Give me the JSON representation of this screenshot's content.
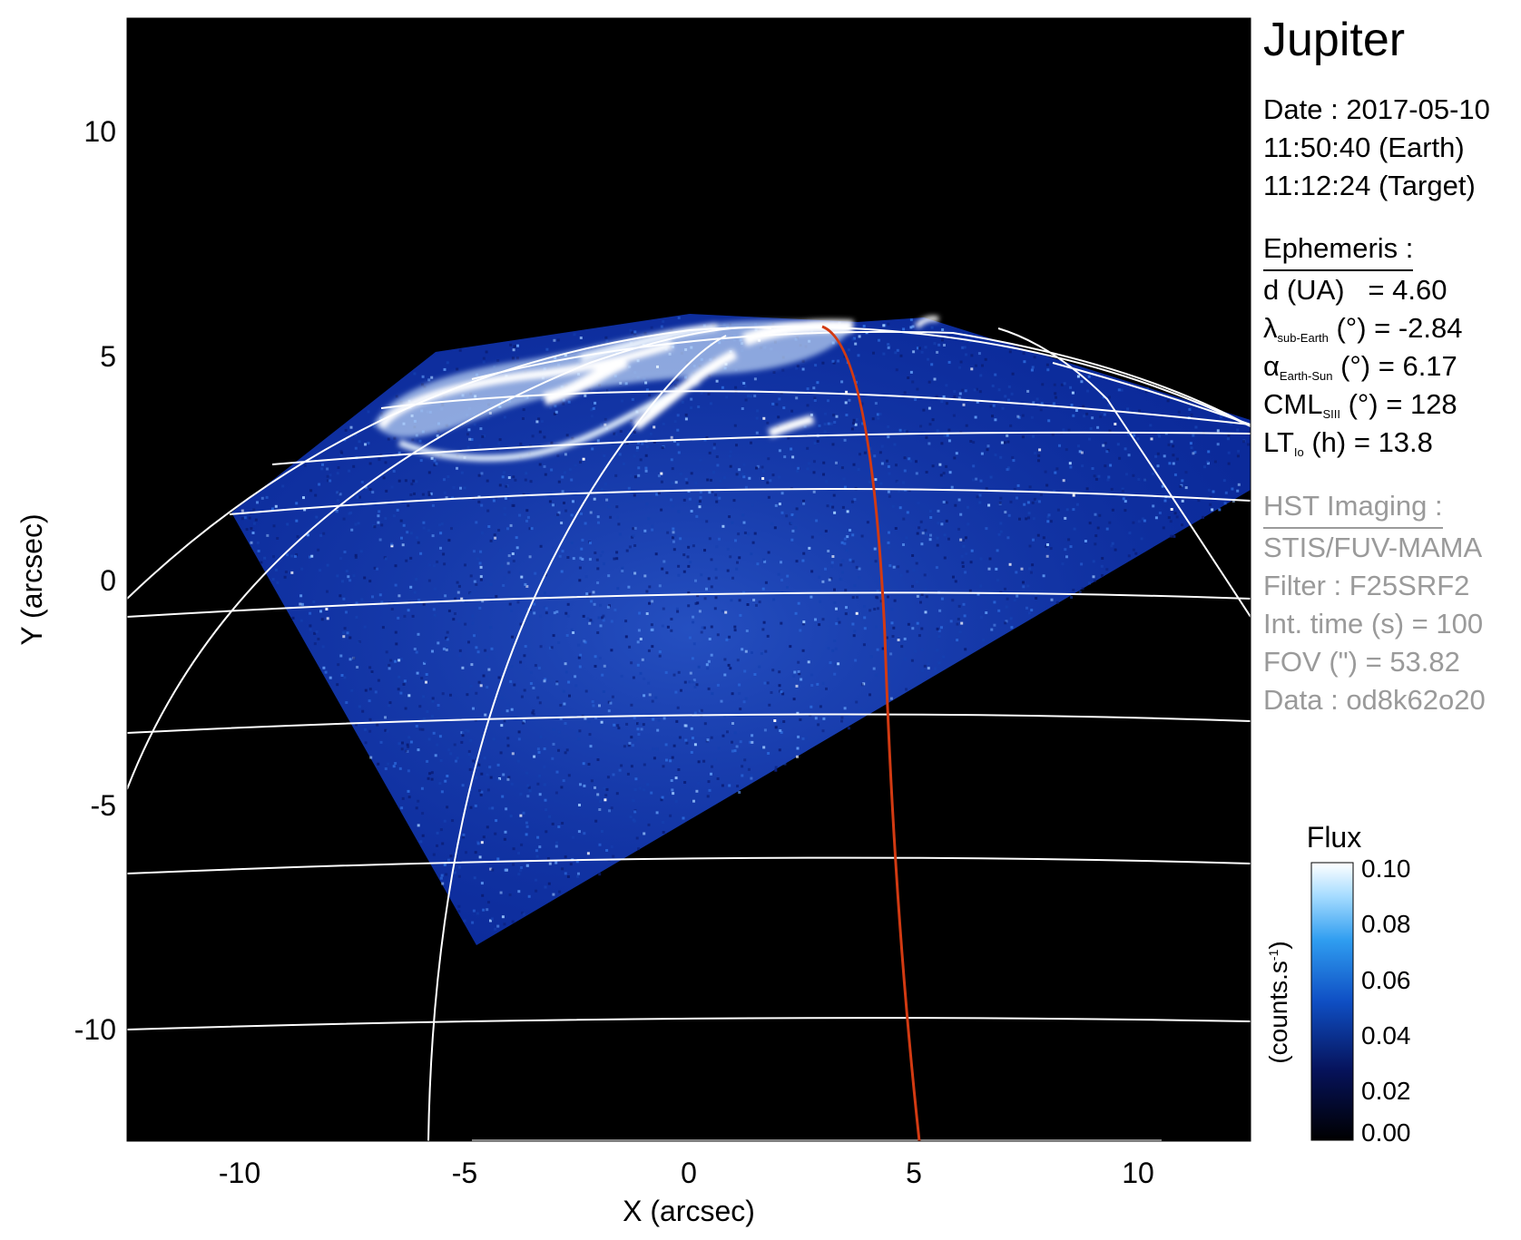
{
  "image": {
    "title": "Jupiter",
    "observation": {
      "date_line": "Date : 2017-05-10",
      "time_earth": "11:50:40 (Earth)",
      "time_target": "11:12:24 (Target)"
    },
    "ephemeris": {
      "heading": "Ephemeris :",
      "d_label": "d (UA)",
      "d_value": "= 4.60",
      "lat_symbol": "λ",
      "lat_sub": "sub-Earth",
      "lat_rest": " (°) = -2.84",
      "phase_symbol": "α",
      "phase_sub": "Earth-Sun",
      "phase_rest": " (°) = 6.17",
      "cml_symbol": "CML",
      "cml_sub": "SIII",
      "cml_rest": " (°) = 128",
      "lt_symbol": "LT",
      "lt_sub": "Io",
      "lt_rest": " (h) = 13.8"
    },
    "hst": {
      "heading": "HST Imaging :",
      "instrument": "STIS/FUV-MAMA",
      "filter": "Filter : F25SRF2",
      "int_time": "Int. time (s) = 100",
      "fov": "FOV (\") = 53.82",
      "data": "Data : od8k62o20"
    },
    "axes": {
      "x_label": "X (arcsec)",
      "y_label": "Y (arcsec)",
      "x_ticks": [
        "-10",
        "-5",
        "0",
        "5",
        "10"
      ],
      "y_ticks": [
        "10",
        "5",
        "0",
        "-5",
        "-10"
      ],
      "x_range": [
        -12.5,
        12.5
      ],
      "y_range": [
        -12.5,
        12.5
      ]
    },
    "colorbar": {
      "title": "Flux",
      "unit": "(counts.s",
      "unit_sup": "-1",
      "unit_end": ")",
      "ticks": [
        "0.10",
        "0.08",
        "0.06",
        "0.04",
        "0.02",
        "0.00"
      ],
      "range": [
        0,
        0.1
      ]
    },
    "colors": {
      "background": "#000000",
      "emission_low": "#0a1a6e",
      "emission_high": "#ffffff",
      "grid": "#ffffff",
      "ref_meridian": "#d23a12",
      "secondary_text": "#9a9a9a"
    }
  }
}
